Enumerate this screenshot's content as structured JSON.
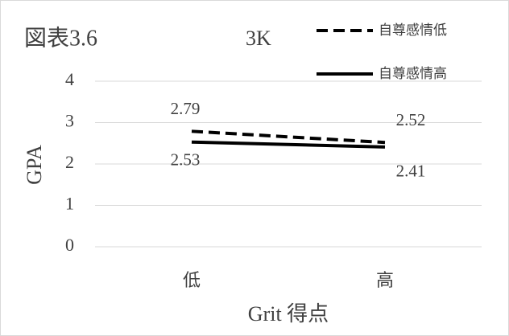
{
  "chart_data": {
    "type": "line",
    "title": "図表3.6",
    "annotation": "3K",
    "x_label": "Grit 得点",
    "y_label": "GPA",
    "categories": [
      "低",
      "高"
    ],
    "series": [
      {
        "name": "自尊感情低",
        "color": "#000000",
        "dashed": true,
        "values": [
          2.79,
          2.52
        ]
      },
      {
        "name": "自尊感情高",
        "color": "#000000",
        "dashed": false,
        "values": [
          2.53,
          2.41
        ]
      }
    ],
    "ylim": [
      0,
      4
    ],
    "yticks": [
      0,
      1,
      2,
      3,
      4
    ],
    "grid": true,
    "legend": "top-right"
  }
}
